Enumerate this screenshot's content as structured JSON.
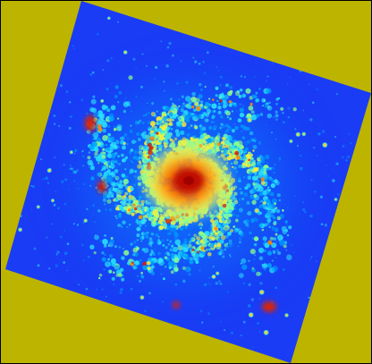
{
  "image": {
    "subject": "spiral-galaxy",
    "colormap": "jet",
    "colors": {
      "background": "#bdb400",
      "frame": "#000000",
      "field_low": "#1a3cf5",
      "field_mid": "#00a0ff",
      "arm_cyan": "#26e0ff",
      "arm_green": "#8cff8c",
      "arm_yellow": "#ffef30",
      "core_orange": "#ff8a00",
      "core_red": "#e01a00",
      "core_dark": "#a00000"
    }
  }
}
